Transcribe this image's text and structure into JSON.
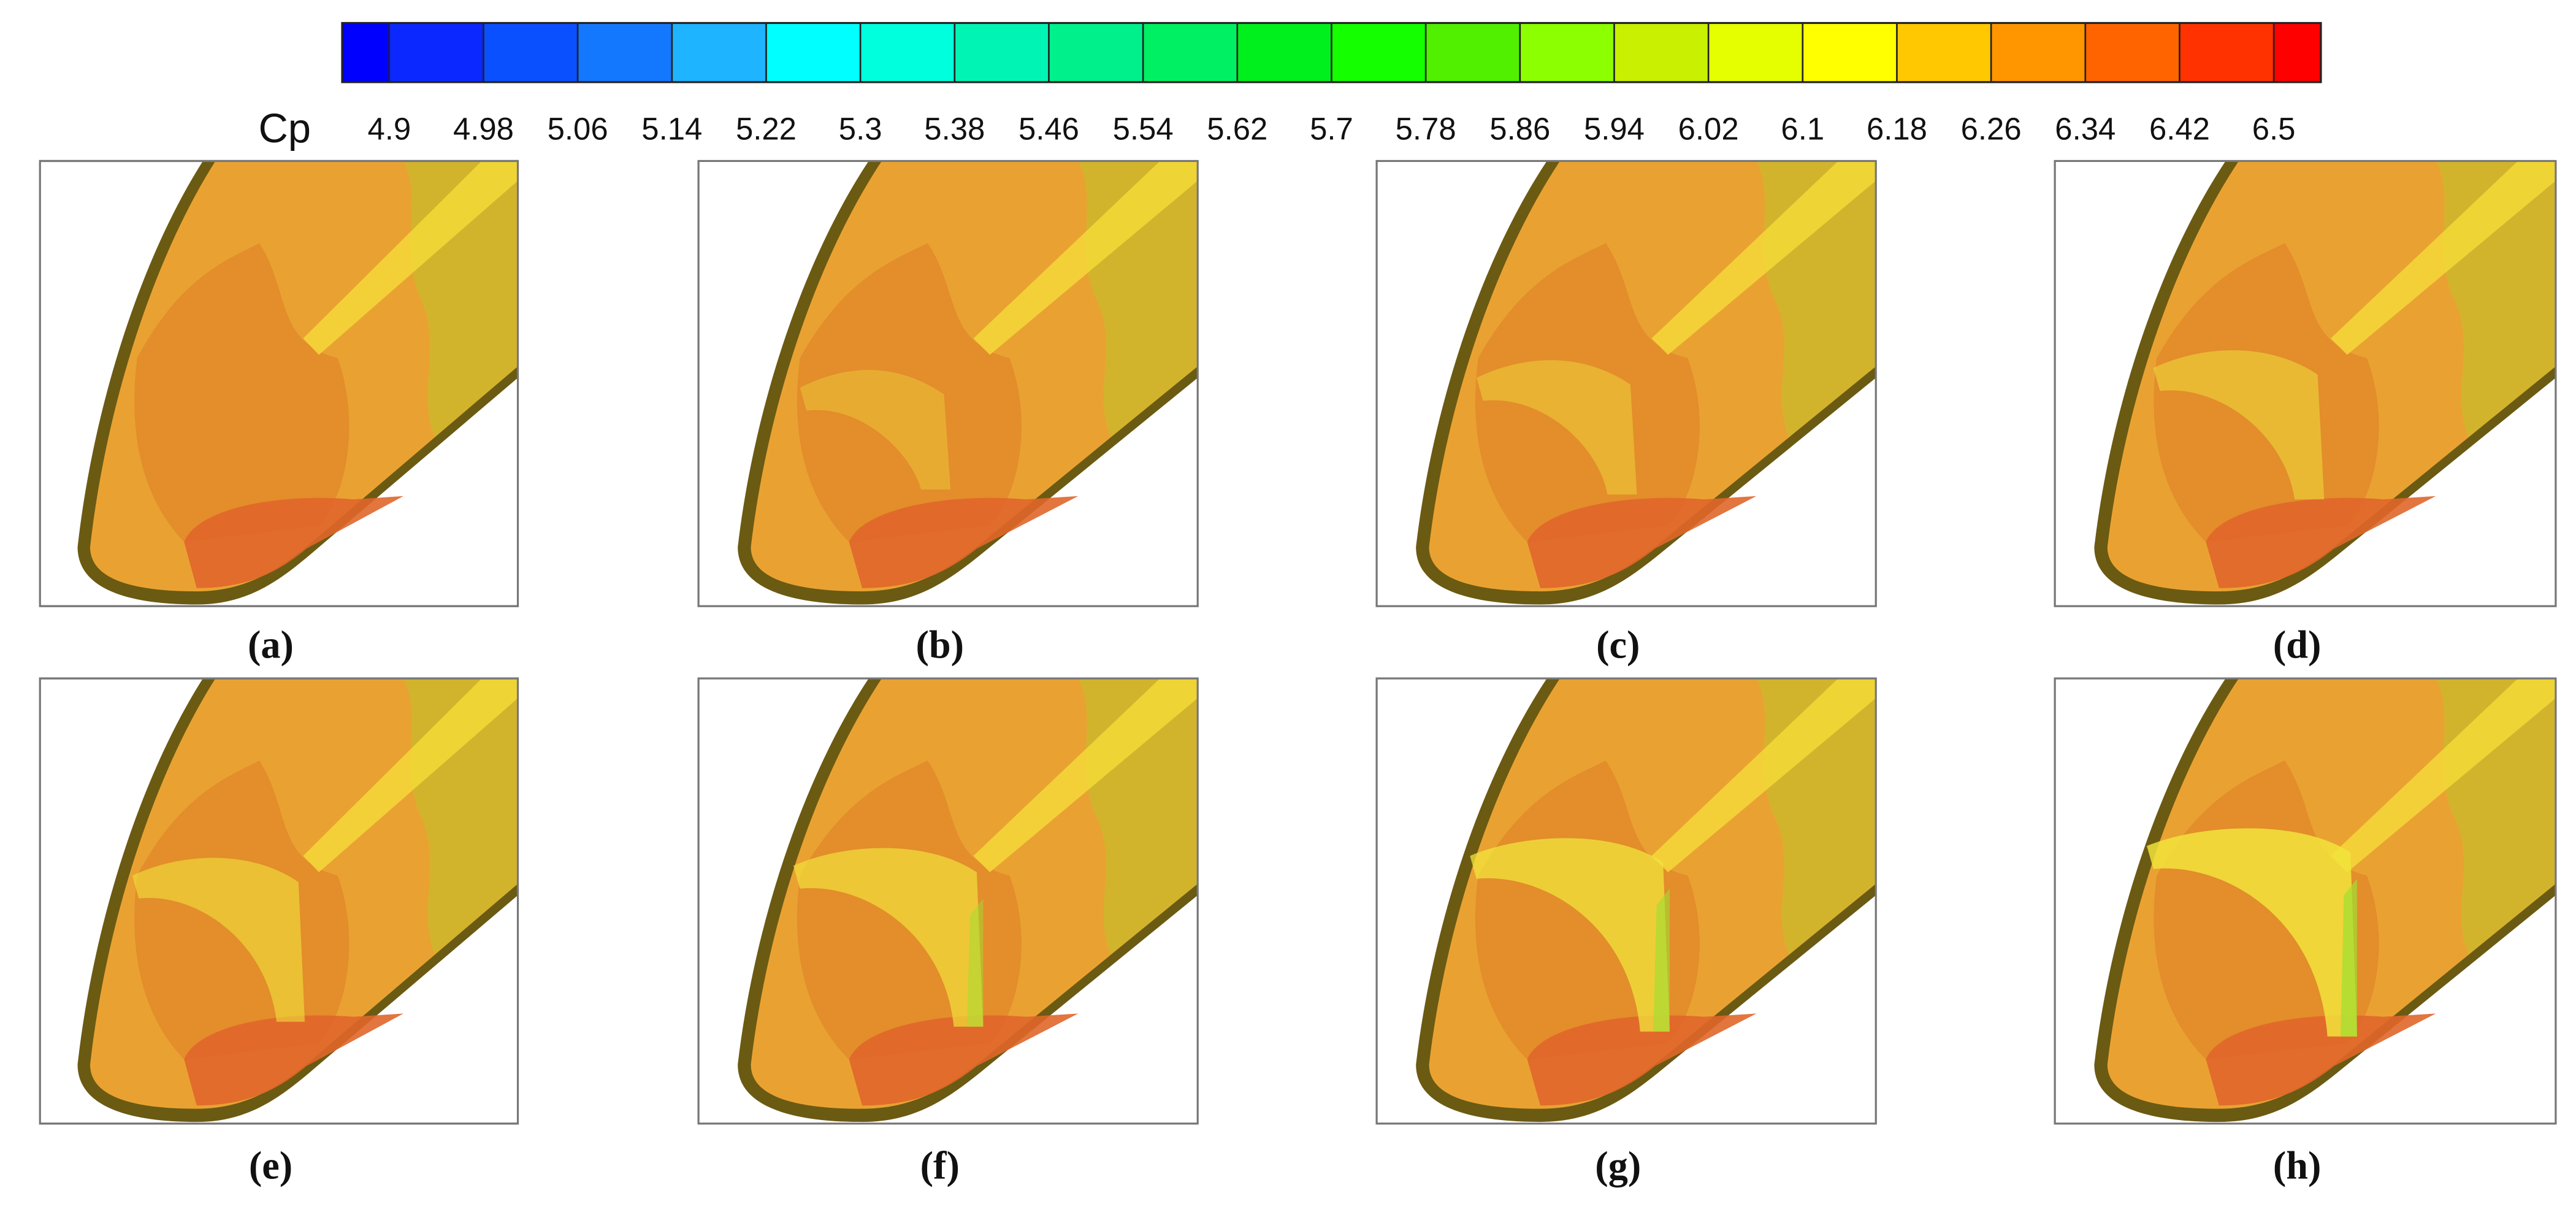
{
  "chart_data": {
    "type": "colorbar",
    "label": "Cp",
    "xlim": [
      4.86,
      6.54
    ],
    "xticks": [
      4.9,
      4.98,
      5.06,
      5.14,
      5.22,
      5.3,
      5.38,
      5.46,
      5.54,
      5.62,
      5.7,
      5.78,
      5.86,
      5.94,
      6.02,
      6.1,
      6.18,
      6.26,
      6.34,
      6.42,
      6.5
    ],
    "colors": [
      "#0000ff",
      "#0a28ff",
      "#0a50ff",
      "#1478ff",
      "#1eb4ff",
      "#00ffff",
      "#00ffdc",
      "#00f5b4",
      "#00f08c",
      "#00f064",
      "#00f01e",
      "#14ff00",
      "#50f000",
      "#8cff00",
      "#c8f000",
      "#e6ff00",
      "#ffff00",
      "#ffc800",
      "#ff9600",
      "#ff6400",
      "#ff3200",
      "#ff0000"
    ]
  },
  "panels": [
    {
      "label": "(a)"
    },
    {
      "label": "(b)"
    },
    {
      "label": "(c)"
    },
    {
      "label": "(d)"
    },
    {
      "label": "(e)"
    },
    {
      "label": "(f)"
    },
    {
      "label": "(g)"
    },
    {
      "label": "(h)"
    }
  ]
}
